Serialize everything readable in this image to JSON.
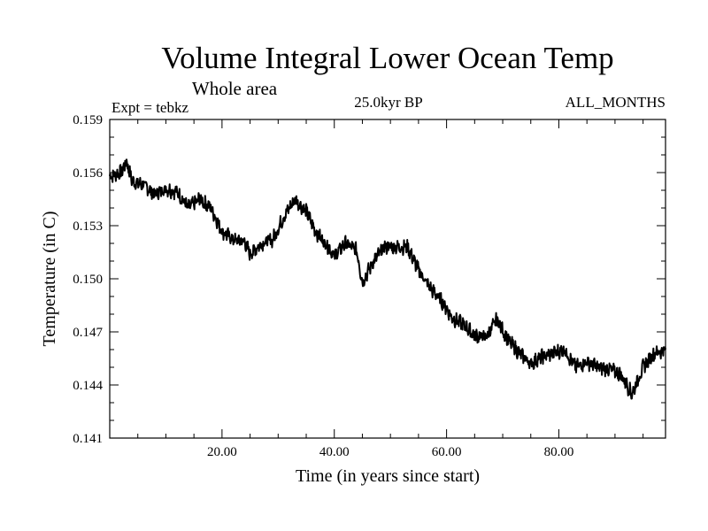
{
  "chart_data": {
    "type": "line",
    "title": "Volume Integral Lower Ocean Temp",
    "subtitle": "Whole area",
    "experiment_label": "Expt = tebkz",
    "period_label": "25.0kyr BP",
    "months_label": "ALL_MONTHS",
    "xlabel": "Time (in years since start)",
    "ylabel": "Temperature (in C)",
    "xlim": [
      0,
      99
    ],
    "ylim": [
      0.141,
      0.159
    ],
    "x_ticks": [
      20,
      40,
      60,
      80
    ],
    "x_tick_labels": [
      "20.00",
      "40.00",
      "60.00",
      "80.00"
    ],
    "y_ticks": [
      0.141,
      0.144,
      0.147,
      0.15,
      0.153,
      0.156,
      0.159
    ],
    "y_tick_labels": [
      "0.141",
      "0.144",
      "0.147",
      "0.150",
      "0.153",
      "0.156",
      "0.159"
    ],
    "grid": false,
    "series": [
      {
        "name": "Volume integral lower ocean temperature",
        "x": [
          0,
          2,
          3,
          4,
          6,
          8,
          10,
          12,
          14,
          16,
          18,
          20,
          22,
          24,
          25,
          27,
          29,
          31,
          33,
          35,
          37,
          39,
          40,
          42,
          44,
          45,
          47,
          49,
          51,
          53,
          55,
          57,
          59,
          61,
          63,
          65,
          67,
          69,
          71,
          73,
          75,
          77,
          79,
          81,
          83,
          85,
          87,
          89,
          91,
          93,
          95,
          97,
          99
        ],
        "values": [
          0.1558,
          0.156,
          0.1566,
          0.1555,
          0.1553,
          0.1548,
          0.1551,
          0.1549,
          0.154,
          0.1545,
          0.154,
          0.1527,
          0.1522,
          0.1521,
          0.1514,
          0.152,
          0.1522,
          0.1535,
          0.1545,
          0.1538,
          0.1525,
          0.1518,
          0.1513,
          0.152,
          0.1516,
          0.1498,
          0.151,
          0.1518,
          0.1518,
          0.1518,
          0.1505,
          0.1495,
          0.1488,
          0.1478,
          0.1474,
          0.1468,
          0.1467,
          0.1477,
          0.1465,
          0.1458,
          0.1452,
          0.1456,
          0.1458,
          0.146,
          0.145,
          0.1453,
          0.145,
          0.1449,
          0.1446,
          0.1435,
          0.145,
          0.1458,
          0.146
        ]
      }
    ]
  }
}
